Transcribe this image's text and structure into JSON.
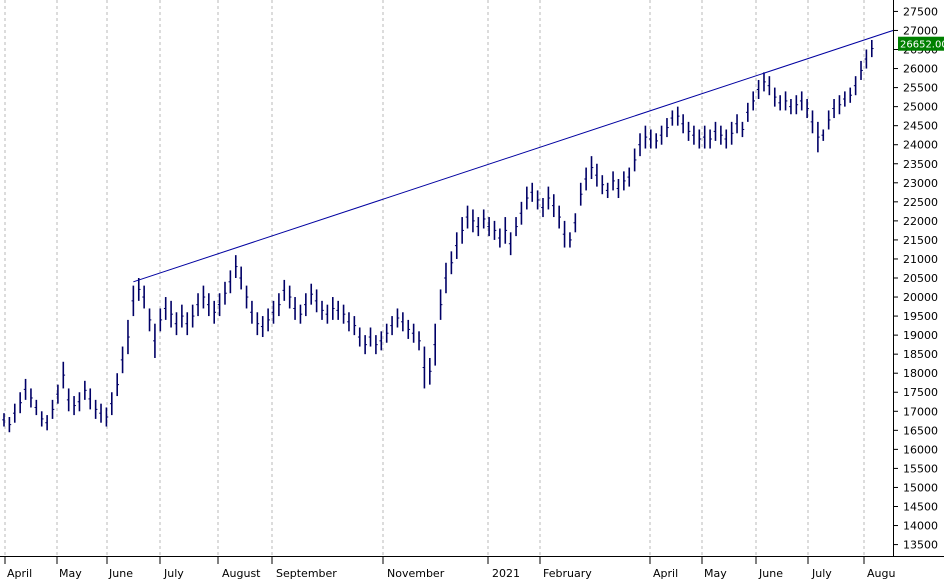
{
  "chart_data": {
    "type": "bar",
    "subtype": "ohlc-price",
    "y_ticks": [
      "13500",
      "14000",
      "14500",
      "15000",
      "15500",
      "16000",
      "16500",
      "17000",
      "17500",
      "18000",
      "18500",
      "19000",
      "19500",
      "20000",
      "20500",
      "21000",
      "21500",
      "22000",
      "22500",
      "23000",
      "23500",
      "24000",
      "24500",
      "25000",
      "25500",
      "26000",
      "26500",
      "27000",
      "27500"
    ],
    "ylim": [
      13200,
      27800
    ],
    "x_labels": [
      "April",
      "May",
      "June",
      "July",
      "August",
      "September",
      "November",
      "2021",
      "February",
      "April",
      "May",
      "June",
      "July",
      "Augu"
    ],
    "last_price_label": "26652.00",
    "series": [
      {
        "values": [
          [
            0,
            16950,
            16600
          ],
          [
            1,
            16850,
            16450
          ],
          [
            2,
            17200,
            16700
          ],
          [
            3,
            17500,
            16950
          ],
          [
            4,
            17850,
            17300
          ],
          [
            5,
            17600,
            17100
          ],
          [
            6,
            17300,
            16900
          ],
          [
            7,
            17000,
            16600
          ],
          [
            8,
            16900,
            16500
          ],
          [
            9,
            17300,
            16800
          ],
          [
            10,
            17700,
            17200
          ],
          [
            11,
            18300,
            17600
          ],
          [
            12,
            17600,
            17000
          ],
          [
            13,
            17400,
            16900
          ],
          [
            14,
            17500,
            17000
          ],
          [
            15,
            17800,
            17300
          ],
          [
            16,
            17600,
            17050
          ],
          [
            17,
            17300,
            16800
          ],
          [
            18,
            17200,
            16700
          ],
          [
            19,
            17100,
            16600
          ],
          [
            20,
            17500,
            16900
          ],
          [
            21,
            18000,
            17400
          ],
          [
            22,
            18700,
            18000
          ],
          [
            23,
            19400,
            18500
          ],
          [
            24,
            20300,
            19500
          ],
          [
            25,
            20500,
            19900
          ],
          [
            26,
            20300,
            19700
          ],
          [
            27,
            19700,
            19100
          ],
          [
            28,
            19300,
            18400
          ],
          [
            29,
            19700,
            19100
          ],
          [
            30,
            20000,
            19400
          ],
          [
            31,
            19900,
            19200
          ],
          [
            32,
            19600,
            19000
          ],
          [
            33,
            19800,
            19200
          ],
          [
            34,
            19600,
            19000
          ],
          [
            35,
            19800,
            19200
          ],
          [
            36,
            20100,
            19500
          ],
          [
            37,
            20300,
            19700
          ],
          [
            38,
            20100,
            19500
          ],
          [
            39,
            19900,
            19300
          ],
          [
            40,
            20100,
            19500
          ],
          [
            41,
            20400,
            19800
          ],
          [
            42,
            20700,
            20100
          ],
          [
            43,
            21100,
            20500
          ],
          [
            44,
            20800,
            20200
          ],
          [
            45,
            20300,
            19700
          ],
          [
            46,
            19900,
            19300
          ],
          [
            47,
            19600,
            19000
          ],
          [
            48,
            19500,
            18950
          ],
          [
            49,
            19700,
            19100
          ],
          [
            50,
            19900,
            19300
          ],
          [
            51,
            20100,
            19500
          ],
          [
            52,
            20450,
            19900
          ],
          [
            53,
            20300,
            19700
          ],
          [
            54,
            20000,
            19400
          ],
          [
            55,
            19800,
            19300
          ],
          [
            56,
            20100,
            19500
          ],
          [
            57,
            20350,
            19800
          ],
          [
            58,
            20200,
            19600
          ],
          [
            59,
            19900,
            19400
          ],
          [
            60,
            19800,
            19300
          ],
          [
            61,
            20000,
            19400
          ],
          [
            62,
            19900,
            19400
          ],
          [
            63,
            19800,
            19300
          ],
          [
            64,
            19600,
            19100
          ],
          [
            65,
            19500,
            19000
          ],
          [
            66,
            19200,
            18700
          ],
          [
            67,
            19000,
            18500
          ],
          [
            68,
            19200,
            18700
          ],
          [
            69,
            19000,
            18500
          ],
          [
            70,
            19100,
            18600
          ],
          [
            71,
            19300,
            18800
          ],
          [
            72,
            19500,
            19000
          ],
          [
            73,
            19700,
            19200
          ],
          [
            74,
            19600,
            19100
          ],
          [
            75,
            19400,
            18900
          ],
          [
            76,
            19300,
            18800
          ],
          [
            77,
            19100,
            18600
          ],
          [
            78,
            18700,
            17600
          ],
          [
            79,
            18400,
            17700
          ],
          [
            80,
            19300,
            18200
          ],
          [
            81,
            20200,
            19400
          ],
          [
            82,
            20900,
            20100
          ],
          [
            83,
            21200,
            20600
          ],
          [
            84,
            21700,
            21000
          ],
          [
            85,
            22100,
            21400
          ],
          [
            86,
            22400,
            21800
          ],
          [
            87,
            22300,
            21700
          ],
          [
            88,
            22100,
            21600
          ],
          [
            89,
            22300,
            21800
          ],
          [
            90,
            22100,
            21600
          ],
          [
            91,
            22000,
            21500
          ],
          [
            92,
            21800,
            21300
          ],
          [
            93,
            22100,
            21400
          ],
          [
            94,
            21700,
            21100
          ],
          [
            95,
            22100,
            21600
          ],
          [
            96,
            22500,
            21900
          ],
          [
            97,
            22900,
            22300
          ],
          [
            98,
            23000,
            22500
          ],
          [
            99,
            22800,
            22300
          ],
          [
            100,
            22600,
            22100
          ],
          [
            101,
            22900,
            22300
          ],
          [
            102,
            22700,
            22100
          ],
          [
            103,
            22400,
            21800
          ],
          [
            104,
            22000,
            21300
          ],
          [
            105,
            21700,
            21300
          ],
          [
            106,
            22200,
            21700
          ],
          [
            107,
            23000,
            22400
          ],
          [
            108,
            23400,
            22800
          ],
          [
            109,
            23700,
            23100
          ],
          [
            110,
            23500,
            22900
          ],
          [
            111,
            23200,
            22700
          ],
          [
            112,
            23000,
            22600
          ],
          [
            113,
            23300,
            22800
          ],
          [
            114,
            23100,
            22600
          ],
          [
            115,
            23300,
            22800
          ],
          [
            116,
            23400,
            22900
          ],
          [
            117,
            23900,
            23300
          ],
          [
            118,
            24300,
            23700
          ],
          [
            119,
            24500,
            23900
          ],
          [
            120,
            24400,
            23900
          ],
          [
            121,
            24300,
            23900
          ],
          [
            122,
            24500,
            24000
          ],
          [
            123,
            24700,
            24200
          ],
          [
            124,
            24900,
            24500
          ],
          [
            125,
            25000,
            24500
          ],
          [
            126,
            24800,
            24300
          ],
          [
            127,
            24600,
            24100
          ],
          [
            128,
            24500,
            24000
          ],
          [
            129,
            24400,
            23900
          ],
          [
            130,
            24500,
            23900
          ],
          [
            131,
            24400,
            23900
          ],
          [
            132,
            24600,
            24100
          ],
          [
            133,
            24500,
            24000
          ],
          [
            134,
            24400,
            23900
          ],
          [
            135,
            24600,
            24000
          ],
          [
            136,
            24800,
            24300
          ],
          [
            137,
            24600,
            24200
          ],
          [
            138,
            25100,
            24600
          ],
          [
            139,
            25400,
            24900
          ],
          [
            140,
            25700,
            25200
          ],
          [
            141,
            25900,
            25400
          ],
          [
            142,
            25800,
            25300
          ],
          [
            143,
            25500,
            25000
          ],
          [
            144,
            25300,
            24900
          ],
          [
            145,
            25400,
            24900
          ],
          [
            146,
            25200,
            24800
          ],
          [
            147,
            25300,
            24800
          ],
          [
            148,
            25400,
            24900
          ],
          [
            149,
            25200,
            24700
          ],
          [
            150,
            24900,
            24300
          ],
          [
            151,
            24600,
            23800
          ],
          [
            152,
            24400,
            24100
          ],
          [
            153,
            24900,
            24400
          ],
          [
            154,
            25200,
            24700
          ],
          [
            155,
            25300,
            24800
          ],
          [
            156,
            25400,
            25000
          ],
          [
            157,
            25500,
            25100
          ],
          [
            158,
            25800,
            25300
          ],
          [
            159,
            26200,
            25700
          ],
          [
            160,
            26500,
            26000
          ],
          [
            161,
            26750,
            26300
          ]
        ]
      }
    ],
    "trendline": {
      "from": [
        24,
        20400
      ],
      "to": [
        164,
        27000
      ]
    },
    "grid": "vertical-dashed",
    "colors": {
      "bars": "#000066",
      "trendline": "#0000a0",
      "last_price_bg": "#008000",
      "grid": "#b8b8b8",
      "axis": "#000000"
    }
  }
}
